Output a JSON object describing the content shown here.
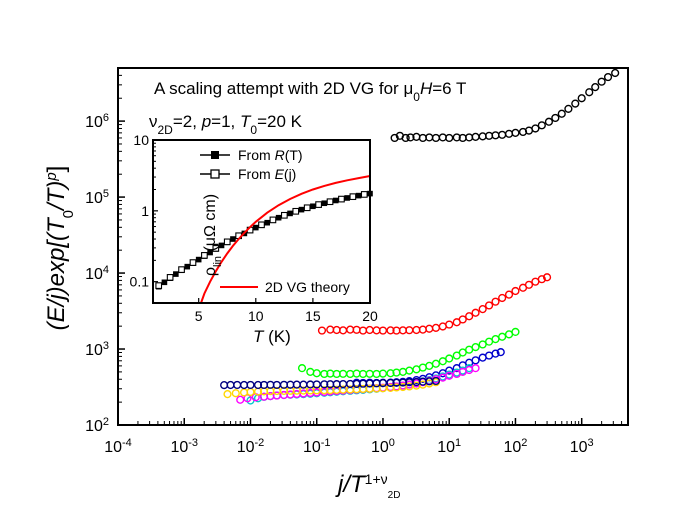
{
  "chart_data": [
    {
      "type": "scatter",
      "title_parts": {
        "lead": "A scaling attempt with 2D VG for ",
        "mu": "μ",
        "mu_sub": "0",
        "h": "H",
        "tail": "=6 T"
      },
      "params_parts": {
        "nu": "ν",
        "nu_sub": "2D",
        "nu_val": "=2, ",
        "p": "p",
        "p_val": "=1, ",
        "t": "T",
        "t_sub": "0",
        "t_val": "=20 K"
      },
      "xlabel_parts": {
        "main": "j/T",
        "sup": "1+ν",
        "supsub": "2D"
      },
      "ylabel_parts": {
        "a": "(E/j)exp[(T",
        "sub": "0",
        "b": "/T)",
        "sup": "p",
        "c": "]"
      },
      "x_scale": "log",
      "y_scale": "log",
      "xlim": [
        0.0001,
        5000
      ],
      "ylim": [
        100,
        5000000
      ],
      "x_tick_labels": [
        {
          "base": "10",
          "exp": "-4"
        },
        {
          "base": "10",
          "exp": "-3"
        },
        {
          "base": "10",
          "exp": "-2"
        },
        {
          "base": "10",
          "exp": "-1"
        },
        {
          "base": "10",
          "exp": "0"
        },
        {
          "base": "10",
          "exp": "1"
        },
        {
          "base": "10",
          "exp": "2"
        },
        {
          "base": "10",
          "exp": "3"
        }
      ],
      "y_tick_labels": [
        {
          "base": "10",
          "exp": "2"
        },
        {
          "base": "10",
          "exp": "3"
        },
        {
          "base": "10",
          "exp": "4"
        },
        {
          "base": "10",
          "exp": "5"
        },
        {
          "base": "10",
          "exp": "6"
        }
      ],
      "x_ticks": [
        0.0001,
        0.001,
        0.01,
        0.1,
        1,
        10,
        100,
        1000
      ],
      "y_ticks": [
        100,
        1000,
        10000,
        100000,
        1000000
      ],
      "grid": false,
      "series": [
        {
          "color": "#000000",
          "x": [
            1.5,
            1.8,
            2.2,
            2.6,
            3.2,
            4,
            5,
            6.3,
            8,
            10,
            13,
            16,
            20,
            25,
            32,
            40,
            50,
            63,
            80,
            100,
            130,
            160,
            200,
            250,
            320,
            400,
            500,
            630,
            800,
            1000,
            1300,
            1600,
            2000,
            2500,
            3200
          ],
          "y": [
            600000,
            640000,
            600000,
            610000,
            620000,
            600000,
            610000,
            600000,
            610000,
            600000,
            610000,
            600000,
            610000,
            620000,
            630000,
            640000,
            650000,
            660000,
            680000,
            700000,
            720000,
            750000,
            800000,
            880000,
            980000,
            1100000,
            1250000,
            1450000,
            1700000,
            2000000,
            2400000,
            2800000,
            3300000,
            3800000,
            4300000
          ]
        },
        {
          "color": "#ff0000",
          "x": [
            0.12,
            0.16,
            0.2,
            0.25,
            0.32,
            0.4,
            0.5,
            0.63,
            0.8,
            1,
            1.3,
            1.6,
            2,
            2.5,
            3.2,
            4,
            5,
            6.3,
            8,
            10,
            13,
            16,
            20,
            25,
            32,
            40,
            50,
            63,
            80,
            100,
            130,
            160,
            200,
            250,
            300
          ],
          "y": [
            1750,
            1800,
            1780,
            1760,
            1800,
            1790,
            1750,
            1780,
            1760,
            1750,
            1760,
            1750,
            1760,
            1770,
            1780,
            1800,
            1850,
            1900,
            1980,
            2100,
            2250,
            2450,
            2700,
            3000,
            3350,
            3750,
            4200,
            4700,
            5200,
            5800,
            6400,
            7000,
            7700,
            8300,
            8800
          ]
        },
        {
          "color": "#00ff00",
          "x": [
            0.06,
            0.08,
            0.1,
            0.13,
            0.16,
            0.2,
            0.25,
            0.32,
            0.4,
            0.5,
            0.63,
            0.8,
            1,
            1.3,
            1.6,
            2,
            2.5,
            3.2,
            4,
            5,
            6.3,
            8,
            10,
            13,
            16,
            20,
            25,
            32,
            40,
            50,
            63,
            80,
            100
          ],
          "y": [
            560,
            500,
            480,
            470,
            475,
            470,
            472,
            470,
            475,
            470,
            472,
            470,
            475,
            480,
            490,
            500,
            520,
            540,
            570,
            600,
            640,
            690,
            750,
            820,
            900,
            980,
            1060,
            1150,
            1250,
            1350,
            1450,
            1560,
            1680
          ]
        },
        {
          "color": "#0000cc",
          "x": [
            0.4,
            0.5,
            0.63,
            0.8,
            1,
            1.3,
            1.6,
            2,
            2.5,
            3.2,
            4,
            5,
            6.3,
            8,
            10,
            13,
            16,
            20,
            25,
            32,
            40,
            50,
            60
          ],
          "y": [
            360,
            358,
            360,
            358,
            360,
            362,
            365,
            370,
            378,
            390,
            405,
            425,
            450,
            480,
            520,
            560,
            610,
            660,
            710,
            770,
            820,
            870,
            910
          ]
        },
        {
          "color": "#00cccc",
          "x": [
            0.01,
            0.013,
            0.016,
            0.02,
            0.025,
            0.032,
            0.04,
            0.05,
            0.063,
            0.08,
            0.1,
            0.13,
            0.16,
            0.2,
            0.25,
            0.32,
            0.4,
            0.5,
            0.63,
            0.8,
            1,
            1.3,
            1.6,
            2,
            2.5,
            3.2,
            4,
            5,
            6.3,
            8,
            10,
            13,
            16,
            20
          ],
          "y": [
            210,
            225,
            235,
            240,
            245,
            248,
            250,
            252,
            255,
            258,
            262,
            266,
            270,
            274,
            278,
            282,
            286,
            290,
            295,
            300,
            306,
            313,
            320,
            330,
            342,
            356,
            372,
            390,
            410,
            435,
            460,
            490,
            520,
            560
          ]
        },
        {
          "color": "#ff00ff",
          "x": [
            0.007,
            0.009,
            0.012,
            0.016,
            0.02,
            0.025,
            0.032,
            0.04,
            0.05,
            0.063,
            0.08,
            0.1,
            0.13,
            0.16,
            0.2,
            0.25,
            0.32,
            0.4,
            0.5,
            0.63,
            0.8,
            1,
            1.3,
            1.6,
            2,
            2.5,
            3.2,
            4,
            5,
            6.3,
            8,
            10,
            13,
            16,
            20,
            25
          ],
          "y": [
            215,
            225,
            232,
            236,
            240,
            244,
            248,
            252,
            256,
            260,
            264,
            268,
            272,
            276,
            280,
            284,
            288,
            292,
            296,
            300,
            305,
            310,
            316,
            322,
            330,
            340,
            352,
            366,
            382,
            400,
            420,
            445,
            470,
            500,
            530,
            560
          ]
        },
        {
          "color": "#ffd700",
          "x": [
            0.0045,
            0.006,
            0.008,
            0.01,
            0.013,
            0.016,
            0.02,
            0.025,
            0.032,
            0.04,
            0.05,
            0.063,
            0.08,
            0.1,
            0.13,
            0.16,
            0.2,
            0.25,
            0.32,
            0.4,
            0.5,
            0.63,
            0.8,
            1,
            1.3,
            1.6,
            2,
            2.5,
            3.2,
            4,
            5,
            6.3
          ],
          "y": [
            255,
            262,
            268,
            272,
            275,
            277,
            279,
            280,
            281,
            282,
            283,
            284,
            285,
            286,
            287,
            288,
            290,
            292,
            294,
            296,
            298,
            300,
            302,
            305,
            308,
            312,
            316,
            322,
            330,
            340,
            352,
            366
          ]
        },
        {
          "color": "#000080",
          "x": [
            0.004,
            0.005,
            0.0063,
            0.008,
            0.01,
            0.013,
            0.016,
            0.02,
            0.025,
            0.032,
            0.04,
            0.05,
            0.063,
            0.08,
            0.1,
            0.13,
            0.16,
            0.2,
            0.25,
            0.32,
            0.4,
            0.5,
            0.63,
            0.8,
            1,
            1.3,
            1.6,
            2,
            2.5,
            3.2,
            4,
            5,
            6.3
          ],
          "y": [
            335,
            336,
            337,
            336,
            337,
            336,
            337,
            338,
            337,
            338,
            339,
            340,
            340,
            341,
            342,
            343,
            344,
            345,
            346,
            347,
            348,
            350,
            352,
            354,
            356,
            358,
            360,
            362,
            365,
            368,
            372,
            376,
            380
          ]
        }
      ]
    },
    {
      "type": "line",
      "xlabel_parts": {
        "t": "T",
        "unit": " (K)"
      },
      "ylabel_parts": {
        "rho": "ρ",
        "sub": "lin",
        "unit": " (μΩ cm)"
      },
      "x_scale": "linear",
      "y_scale": "log",
      "xlim": [
        1,
        20
      ],
      "ylim": [
        0.05,
        10
      ],
      "x_ticks": [
        5,
        10,
        15,
        20
      ],
      "x_tick_labels": [
        "5",
        "10",
        "15",
        "20"
      ],
      "y_ticks": [
        0.1,
        1,
        10
      ],
      "y_tick_labels": [
        "0.1",
        "1",
        "10"
      ],
      "grid": false,
      "legend_position": "top-left",
      "theory_label_position": "bottom-right",
      "series": [
        {
          "name_parts": {
            "pre": "From ",
            "var": "R",
            "post": "(T)"
          },
          "color": "#000000",
          "marker": "filled-square",
          "line": true,
          "x": [
            1.5,
            2,
            2.5,
            3,
            3.5,
            4,
            4.5,
            5,
            5.5,
            6,
            6.5,
            7,
            7.5,
            8,
            8.5,
            9,
            9.5,
            10,
            10.5,
            11,
            11.5,
            12,
            12.5,
            13,
            13.5,
            14,
            14.5,
            15,
            15.5,
            16,
            16.5,
            17,
            17.5,
            18,
            18.5,
            19,
            19.5,
            20
          ],
          "y": [
            0.085,
            0.098,
            0.112,
            0.128,
            0.145,
            0.163,
            0.183,
            0.205,
            0.23,
            0.258,
            0.29,
            0.325,
            0.36,
            0.4,
            0.44,
            0.48,
            0.53,
            0.58,
            0.63,
            0.68,
            0.74,
            0.8,
            0.86,
            0.92,
            0.98,
            1.04,
            1.1,
            1.16,
            1.22,
            1.28,
            1.34,
            1.4,
            1.46,
            1.52,
            1.58,
            1.64,
            1.7,
            1.75
          ]
        },
        {
          "name_parts": {
            "pre": "From ",
            "var": "E",
            "post": "(j)"
          },
          "color": "#000000",
          "marker": "open-square",
          "line": false,
          "x": [
            1.5,
            2.5,
            3.5,
            4.5,
            5.5,
            6.5,
            7.5,
            8.5,
            9.5,
            10.5,
            11.5,
            12.5,
            13.5,
            14.5,
            15.5,
            16.5,
            17.5,
            18.5,
            19.5
          ],
          "y": [
            0.088,
            0.115,
            0.148,
            0.186,
            0.235,
            0.295,
            0.365,
            0.445,
            0.535,
            0.635,
            0.745,
            0.865,
            0.985,
            1.105,
            1.225,
            1.345,
            1.465,
            1.585,
            1.705
          ]
        },
        {
          "name_parts": {
            "pre": "2D VG theory",
            "var": "",
            "post": ""
          },
          "color": "#ff0000",
          "marker": "none",
          "line": true,
          "x": [
            5.2,
            5.5,
            6,
            6.5,
            7,
            7.5,
            8,
            8.5,
            9,
            9.5,
            10,
            11,
            12,
            13,
            14,
            15,
            16,
            17,
            18,
            19,
            20
          ],
          "y": [
            0.05,
            0.068,
            0.1,
            0.14,
            0.19,
            0.25,
            0.32,
            0.4,
            0.49,
            0.59,
            0.7,
            0.94,
            1.2,
            1.47,
            1.74,
            2.0,
            2.25,
            2.48,
            2.7,
            2.9,
            3.1
          ]
        }
      ]
    }
  ]
}
